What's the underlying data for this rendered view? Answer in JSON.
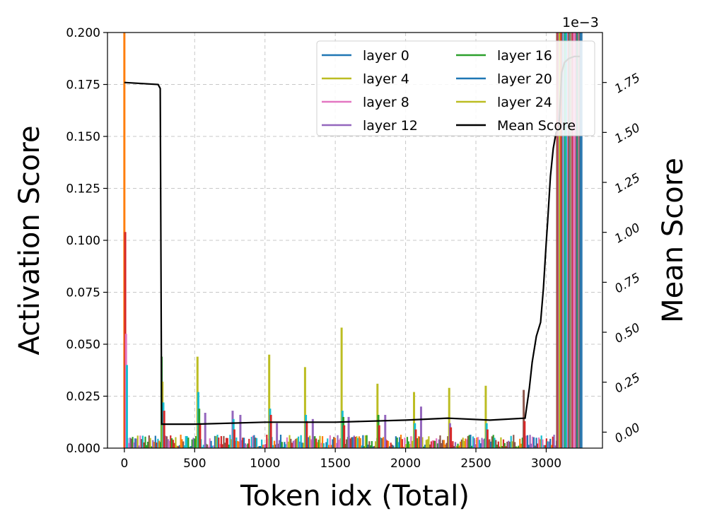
{
  "chart_data": {
    "type": "bar+line",
    "xlabel": "Token idx (Total)",
    "ylabel_left": "Activation Score",
    "ylabel_right": "Mean Score",
    "right_axis_multiplier": "1e−3",
    "xlim": [
      -120,
      3400
    ],
    "ylim_left": [
      0,
      0.2
    ],
    "ylim_right": [
      -0.08,
      2.0
    ],
    "x_ticks": [
      0,
      500,
      1000,
      1500,
      2000,
      2500,
      3000
    ],
    "x_tick_labels": [
      "0",
      "500",
      "1000",
      "1500",
      "2000",
      "2500",
      "3000"
    ],
    "y_left_ticks": [
      0.0,
      0.025,
      0.05,
      0.075,
      0.1,
      0.125,
      0.15,
      0.175,
      0.2
    ],
    "y_left_tick_labels": [
      "0.000",
      "0.025",
      "0.050",
      "0.075",
      "0.100",
      "0.125",
      "0.150",
      "0.175",
      "0.200"
    ],
    "y_right_ticks": [
      0.0,
      0.25,
      0.5,
      0.75,
      1.0,
      1.25,
      1.5,
      1.75
    ],
    "y_right_tick_labels": [
      "0.00",
      "0.25",
      "0.50",
      "0.75",
      "1.00",
      "1.25",
      "1.50",
      "1.75"
    ],
    "grid": true,
    "legend": {
      "position": "top-right",
      "columns": 2,
      "entries": [
        {
          "label": "layer 0",
          "color": "#1f77b4"
        },
        {
          "label": "layer 4",
          "color": "#bcbd22"
        },
        {
          "label": "layer 8",
          "color": "#e377c2"
        },
        {
          "label": "layer 12",
          "color": "#9467bd"
        },
        {
          "label": "layer 16",
          "color": "#2ca02c"
        },
        {
          "label": "layer 20",
          "color": "#1f77b4"
        },
        {
          "label": "layer 24",
          "color": "#bcbd22"
        },
        {
          "label": "Mean Score",
          "color": "#000000"
        }
      ]
    },
    "spike_series": [
      {
        "x": 0,
        "values": [
          {
            "c": "#ff7f0e",
            "v": 0.2
          },
          {
            "c": "#d62728",
            "v": 0.104
          },
          {
            "c": "#e377c2",
            "v": 0.055
          },
          {
            "c": "#17becf",
            "v": 0.04
          }
        ]
      },
      {
        "x": 265,
        "values": [
          {
            "c": "#2ca02c",
            "v": 0.044
          },
          {
            "c": "#bcbd22",
            "v": 0.032
          },
          {
            "c": "#17becf",
            "v": 0.022
          },
          {
            "c": "#d62728",
            "v": 0.018
          }
        ]
      },
      {
        "x": 520,
        "values": [
          {
            "c": "#bcbd22",
            "v": 0.044
          },
          {
            "c": "#17becf",
            "v": 0.027
          },
          {
            "c": "#2ca02c",
            "v": 0.019
          },
          {
            "c": "#d62728",
            "v": 0.012
          }
        ]
      },
      {
        "x": 575,
        "values": [
          {
            "c": "#9467bd",
            "v": 0.017
          }
        ]
      },
      {
        "x": 770,
        "values": [
          {
            "c": "#9467bd",
            "v": 0.018
          },
          {
            "c": "#17becf",
            "v": 0.014
          },
          {
            "c": "#d62728",
            "v": 0.009
          }
        ]
      },
      {
        "x": 825,
        "values": [
          {
            "c": "#9467bd",
            "v": 0.016
          }
        ]
      },
      {
        "x": 1030,
        "values": [
          {
            "c": "#bcbd22",
            "v": 0.045
          },
          {
            "c": "#17becf",
            "v": 0.019
          },
          {
            "c": "#d62728",
            "v": 0.016
          }
        ]
      },
      {
        "x": 1085,
        "values": [
          {
            "c": "#9467bd",
            "v": 0.012
          }
        ]
      },
      {
        "x": 1285,
        "values": [
          {
            "c": "#bcbd22",
            "v": 0.039
          },
          {
            "c": "#17becf",
            "v": 0.016
          },
          {
            "c": "#d62728",
            "v": 0.013
          }
        ]
      },
      {
        "x": 1340,
        "values": [
          {
            "c": "#9467bd",
            "v": 0.014
          }
        ]
      },
      {
        "x": 1545,
        "values": [
          {
            "c": "#bcbd22",
            "v": 0.058
          },
          {
            "c": "#17becf",
            "v": 0.018
          },
          {
            "c": "#2ca02c",
            "v": 0.015
          },
          {
            "c": "#d62728",
            "v": 0.011
          }
        ]
      },
      {
        "x": 1595,
        "values": [
          {
            "c": "#9467bd",
            "v": 0.015
          }
        ]
      },
      {
        "x": 1800,
        "values": [
          {
            "c": "#bcbd22",
            "v": 0.031
          },
          {
            "c": "#2ca02c",
            "v": 0.016
          },
          {
            "c": "#d62728",
            "v": 0.011
          }
        ]
      },
      {
        "x": 1855,
        "values": [
          {
            "c": "#9467bd",
            "v": 0.016
          }
        ]
      },
      {
        "x": 2060,
        "values": [
          {
            "c": "#bcbd22",
            "v": 0.027
          },
          {
            "c": "#17becf",
            "v": 0.012
          },
          {
            "c": "#d62728",
            "v": 0.009
          }
        ]
      },
      {
        "x": 2110,
        "values": [
          {
            "c": "#9467bd",
            "v": 0.02
          }
        ]
      },
      {
        "x": 2310,
        "values": [
          {
            "c": "#bcbd22",
            "v": 0.029
          },
          {
            "c": "#9467bd",
            "v": 0.012
          },
          {
            "c": "#d62728",
            "v": 0.01
          }
        ]
      },
      {
        "x": 2570,
        "values": [
          {
            "c": "#bcbd22",
            "v": 0.03
          },
          {
            "c": "#17becf",
            "v": 0.012
          },
          {
            "c": "#d62728",
            "v": 0.009
          }
        ]
      },
      {
        "x": 2840,
        "values": [
          {
            "c": "#8c564b",
            "v": 0.028
          },
          {
            "c": "#d62728",
            "v": 0.013
          }
        ]
      },
      {
        "x": 3085,
        "values": [
          {
            "c": "#bcbd22",
            "v": 0.2
          },
          {
            "c": "#ff7f0e",
            "v": 0.2
          },
          {
            "c": "#d62728",
            "v": 0.15
          }
        ]
      },
      {
        "x": 3110,
        "values": [
          {
            "c": "#2ca02c",
            "v": 0.2
          },
          {
            "c": "#e377c2",
            "v": 0.2
          },
          {
            "c": "#d62728",
            "v": 0.2
          }
        ]
      },
      {
        "x": 3135,
        "values": [
          {
            "c": "#ff7f0e",
            "v": 0.2
          },
          {
            "c": "#17becf",
            "v": 0.2
          },
          {
            "c": "#8c564b",
            "v": 0.2
          }
        ]
      },
      {
        "x": 3160,
        "values": [
          {
            "c": "#d62728",
            "v": 0.2
          },
          {
            "c": "#bcbd22",
            "v": 0.2
          }
        ]
      },
      {
        "x": 3185,
        "values": [
          {
            "c": "#9467bd",
            "v": 0.2
          },
          {
            "c": "#8c564b",
            "v": 0.2
          }
        ]
      },
      {
        "x": 3210,
        "values": [
          {
            "c": "#e377c2",
            "v": 0.2
          },
          {
            "c": "#8c564b",
            "v": 0.2
          }
        ]
      },
      {
        "x": 3235,
        "values": [
          {
            "c": "#8c564b",
            "v": 0.2
          },
          {
            "c": "#bcbd22",
            "v": 0.04
          }
        ]
      }
    ],
    "mean_score_line": {
      "x": [
        0,
        240,
        255,
        265,
        500,
        1000,
        1500,
        2000,
        2300,
        2600,
        2850,
        2880,
        2900,
        2930,
        2960,
        2980,
        3000,
        3010,
        3030,
        3050,
        3070,
        3090,
        3110,
        3130,
        3160,
        3200,
        3240
      ],
      "y": [
        1.75,
        1.74,
        1.72,
        0.04,
        0.04,
        0.05,
        0.05,
        0.06,
        0.07,
        0.06,
        0.07,
        0.22,
        0.35,
        0.48,
        0.55,
        0.72,
        0.95,
        1.05,
        1.28,
        1.42,
        1.5,
        1.52,
        1.8,
        1.85,
        1.87,
        1.88,
        1.88
      ]
    }
  }
}
